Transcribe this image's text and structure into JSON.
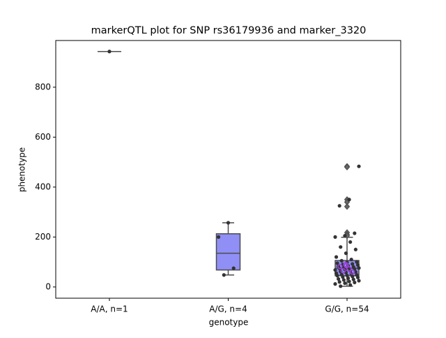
{
  "chart_data": {
    "type": "box",
    "title": "markerQTL plot for SNP rs36179936 and marker_3320",
    "xlabel": "genotype",
    "ylabel": "phenotype",
    "categories": [
      "A/A, n=1",
      "A/G, n=4",
      "G/G, n=54"
    ],
    "box_color": "#8f8ff5",
    "line_color": "#4d4d4d",
    "point_color": "#333333",
    "highlight_color": "#a040e0",
    "boxes": [
      {
        "whislo": 943,
        "q1": 943,
        "med": 943,
        "q3": 943,
        "whishi": 943,
        "fliers": []
      },
      {
        "whislo": 48,
        "q1": 68,
        "med": 135,
        "q3": 213,
        "whishi": 257,
        "fliers": []
      },
      {
        "whislo": 3,
        "q1": 45,
        "med": 75,
        "q3": 106,
        "whishi": 199,
        "fliers": [
          483,
          480,
          350,
          340,
          322,
          218,
          210,
          205
        ]
      }
    ],
    "points": [
      [
        943
      ],
      [
        257,
        200,
        75,
        48
      ],
      [
        483,
        350,
        325,
        215,
        205,
        200,
        180,
        160,
        150,
        135,
        120,
        110,
        105,
        100,
        98,
        95,
        92,
        90,
        88,
        85,
        82,
        80,
        78,
        76,
        75,
        74,
        72,
        70,
        68,
        65,
        62,
        60,
        58,
        55,
        52,
        50,
        48,
        46,
        45,
        42,
        40,
        38,
        35,
        32,
        30,
        28,
        25,
        22,
        20,
        18,
        15,
        12,
        8,
        3
      ]
    ],
    "highlight_points": [
      [],
      [],
      [
        90,
        82,
        72,
        65,
        60,
        85
      ]
    ],
    "ylim": [
      -45,
      987
    ],
    "yticks": [
      0,
      200,
      400,
      600,
      800
    ]
  }
}
